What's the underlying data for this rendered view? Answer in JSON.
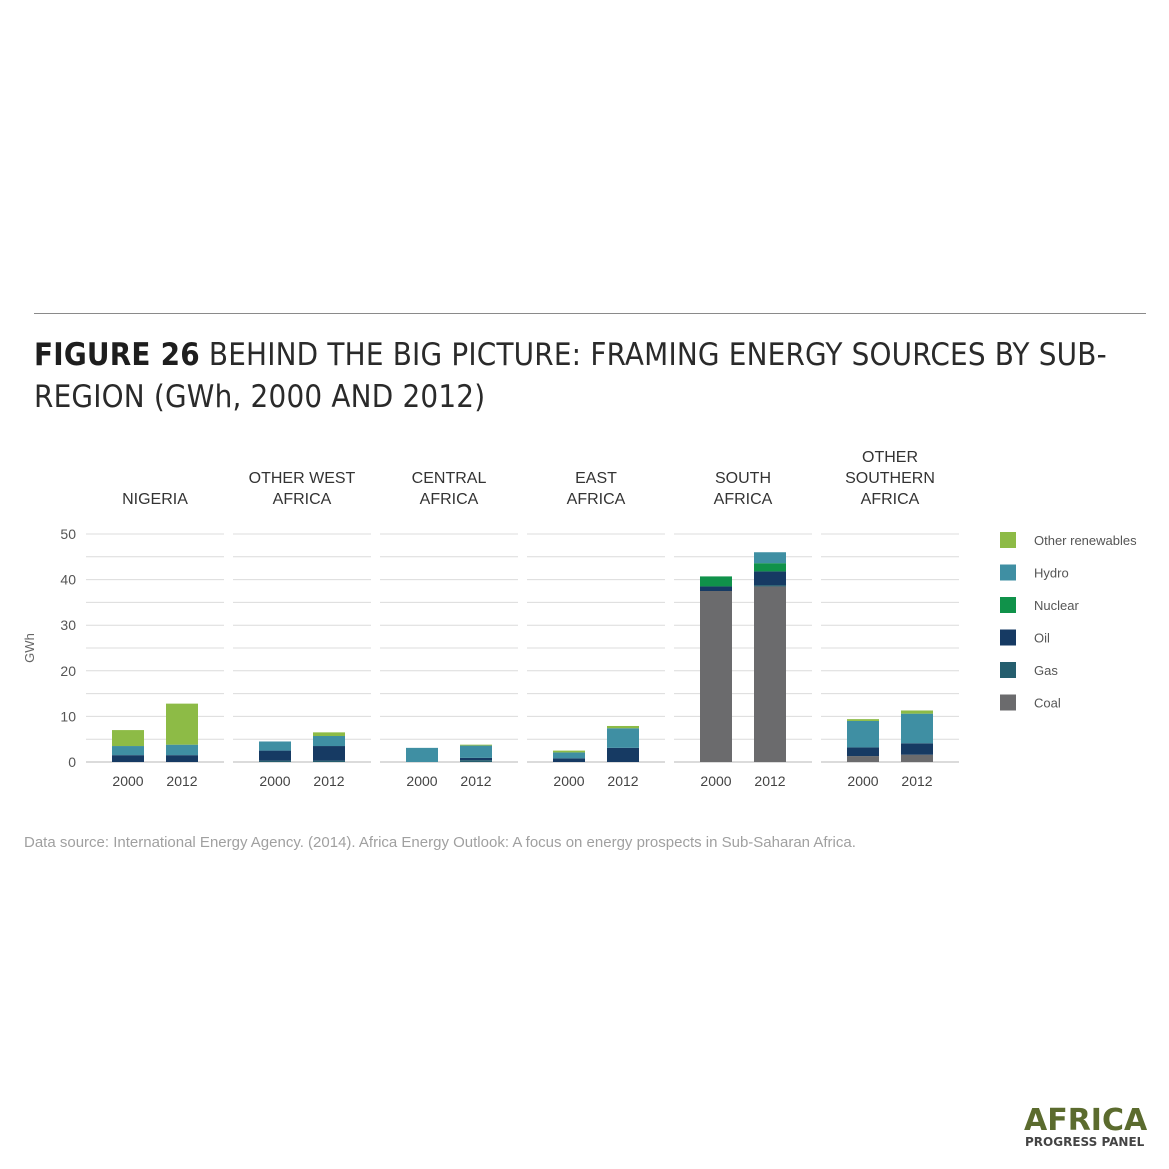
{
  "figure": {
    "label": "FIGURE 26",
    "title": "BEHIND THE BIG PICTURE: FRAMING ENERGY SOURCES BY SUB-REGION (GWh, 2000 AND 2012)"
  },
  "source": "Data source: International Energy Agency. (2014). Africa Energy Outlook: A focus on energy prospects in Sub-Saharan Africa.",
  "logo": {
    "line1": "AFRICA",
    "line2": "PROGRESS PANEL"
  },
  "chart_data": {
    "type": "bar",
    "stacked": true,
    "ylabel": "GWh",
    "ylim": [
      0,
      50
    ],
    "yticks": [
      0,
      10,
      20,
      30,
      40,
      50
    ],
    "grid": true,
    "legend_position": "right",
    "stack_order": [
      "Coal",
      "Gas",
      "Oil",
      "Nuclear",
      "Hydro",
      "Other renewables"
    ],
    "legend": [
      {
        "name": "Other renewables",
        "color": "#8dbb46"
      },
      {
        "name": "Hydro",
        "color": "#3f8fa3"
      },
      {
        "name": "Nuclear",
        "color": "#10924a"
      },
      {
        "name": "Oil",
        "color": "#163a63"
      },
      {
        "name": "Gas",
        "color": "#255e6e"
      },
      {
        "name": "Coal",
        "color": "#6b6b6d"
      }
    ],
    "groups": [
      {
        "lines": [
          "NIGERIA"
        ],
        "bars": [
          {
            "year": "2000",
            "values": {
              "Coal": 0,
              "Gas": 0,
              "Oil": 1.5,
              "Nuclear": 0,
              "Hydro": 2.0,
              "Other renewables": 3.5
            }
          },
          {
            "year": "2012",
            "values": {
              "Coal": 0,
              "Gas": 0,
              "Oil": 1.5,
              "Nuclear": 0,
              "Hydro": 2.3,
              "Other renewables": 9.0
            }
          }
        ]
      },
      {
        "lines": [
          "OTHER WEST",
          "AFRICA"
        ],
        "bars": [
          {
            "year": "2000",
            "values": {
              "Coal": 0,
              "Gas": 0.3,
              "Oil": 2.2,
              "Nuclear": 0,
              "Hydro": 2.0,
              "Other renewables": 0
            }
          },
          {
            "year": "2012",
            "values": {
              "Coal": 0,
              "Gas": 0.3,
              "Oil": 3.2,
              "Nuclear": 0,
              "Hydro": 2.2,
              "Other renewables": 0.8
            }
          }
        ]
      },
      {
        "lines": [
          "CENTRAL",
          "AFRICA"
        ],
        "bars": [
          {
            "year": "2000",
            "values": {
              "Coal": 0,
              "Gas": 0,
              "Oil": 0,
              "Nuclear": 0,
              "Hydro": 3.1,
              "Other renewables": 0
            }
          },
          {
            "year": "2012",
            "values": {
              "Coal": 0,
              "Gas": 0.4,
              "Oil": 0.5,
              "Nuclear": 0,
              "Hydro": 2.7,
              "Other renewables": 0.2
            }
          }
        ]
      },
      {
        "lines": [
          "EAST",
          "AFRICA"
        ],
        "bars": [
          {
            "year": "2000",
            "values": {
              "Coal": 0,
              "Gas": 0,
              "Oil": 0.8,
              "Nuclear": 0,
              "Hydro": 1.3,
              "Other renewables": 0.4
            }
          },
          {
            "year": "2012",
            "values": {
              "Coal": 0,
              "Gas": 0,
              "Oil": 3.1,
              "Nuclear": 0,
              "Hydro": 4.3,
              "Other renewables": 0.5
            }
          }
        ]
      },
      {
        "lines": [
          "SOUTH",
          "AFRICA"
        ],
        "bars": [
          {
            "year": "2000",
            "values": {
              "Coal": 37.5,
              "Gas": 0,
              "Oil": 1.0,
              "Nuclear": 2.2,
              "Hydro": 0,
              "Other renewables": 0
            }
          },
          {
            "year": "2012",
            "values": {
              "Coal": 38.5,
              "Gas": 0.3,
              "Oil": 3.0,
              "Nuclear": 1.8,
              "Hydro": 2.4,
              "Other renewables": 0
            }
          }
        ]
      },
      {
        "lines": [
          "OTHER",
          "SOUTHERN",
          "AFRICA"
        ],
        "bars": [
          {
            "year": "2000",
            "values": {
              "Coal": 1.3,
              "Gas": 0,
              "Oil": 1.9,
              "Nuclear": 0,
              "Hydro": 5.8,
              "Other renewables": 0.4
            }
          },
          {
            "year": "2012",
            "values": {
              "Coal": 1.6,
              "Gas": 0,
              "Oil": 2.5,
              "Nuclear": 0,
              "Hydro": 6.5,
              "Other renewables": 0.7
            }
          }
        ]
      }
    ]
  }
}
